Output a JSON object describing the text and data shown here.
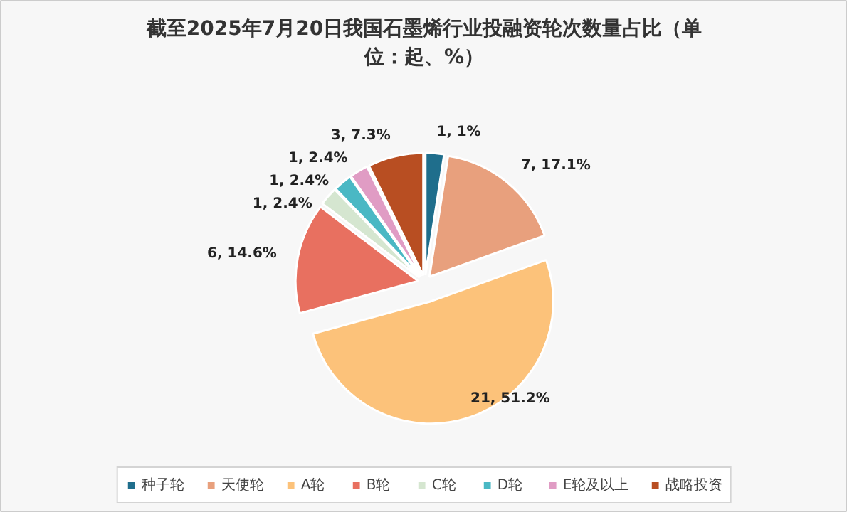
{
  "chart_data": {
    "type": "pie",
    "title": "截至2025年7月20日我国石墨烯行业投融资轮次数量占比（单位：起、%）",
    "categories": [
      "种子轮",
      "天使轮",
      "A轮",
      "B轮",
      "C轮",
      "D轮",
      "E轮及以上",
      "战略投资"
    ],
    "values": [
      1,
      7,
      21,
      6,
      1,
      1,
      1,
      3
    ],
    "colors": [
      "#1f6e8c",
      "#e8a07d",
      "#fcc27a",
      "#e87060",
      "#d5e6d0",
      "#4ab8c4",
      "#e09cc4",
      "#b84e22"
    ],
    "value_labels": [
      "1, 1%",
      "7, 17.1%",
      "21, 51.2%",
      "6, 14.6%",
      "1, 2.4%",
      "1, 2.4%",
      "1, 2.4%",
      "3, 7.3%"
    ],
    "legend": "bottom"
  }
}
